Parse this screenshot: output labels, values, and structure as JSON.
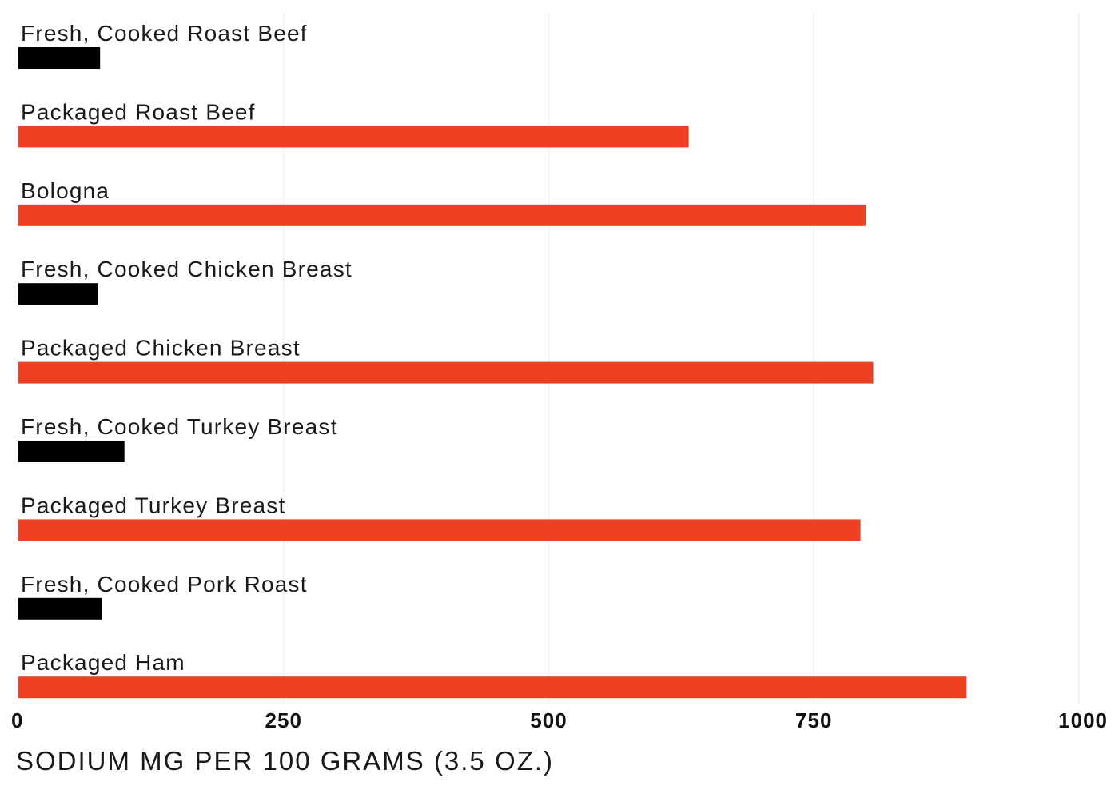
{
  "chart_data": {
    "type": "bar",
    "orientation": "horizontal",
    "categories": [
      "Fresh, Cooked Roast Beef",
      "Packaged Roast Beef",
      "Bologna",
      "Fresh, Cooked Chicken Breast",
      "Packaged Chicken Breast",
      "Fresh, Cooked Turkey Breast",
      "Packaged Turkey Breast",
      "Fresh, Cooked Pork Roast",
      "Packaged Ham"
    ],
    "values": [
      77,
      632,
      799,
      75,
      806,
      100,
      794,
      79,
      894
    ],
    "bar_colors": [
      "#000000",
      "#ee4022",
      "#ee4022",
      "#000000",
      "#ee4022",
      "#000000",
      "#ee4022",
      "#000000",
      "#ee4022"
    ],
    "xlim": [
      0,
      1000
    ],
    "xticks": [
      "0",
      "250",
      "500",
      "750",
      "1000"
    ],
    "xlabel": "SODIUM MG PER 100 GRAMS (3.5 OZ.)",
    "title": "",
    "grid": true,
    "legend": "none"
  }
}
